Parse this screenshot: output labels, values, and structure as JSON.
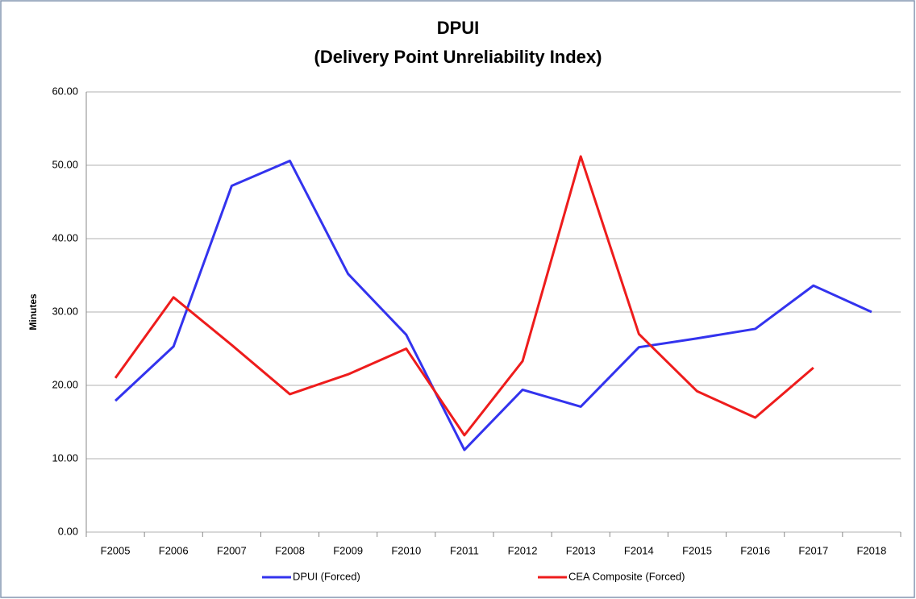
{
  "chart_data": {
    "type": "line",
    "title": "DPUI",
    "subtitle": "(Delivery Point Unreliability Index)",
    "y_label": "Minutes",
    "categories": [
      "F2005",
      "F2006",
      "F2007",
      "F2008",
      "F2009",
      "F2010",
      "F2011",
      "F2012",
      "F2013",
      "F2014",
      "F2015",
      "F2016",
      "F2017",
      "F2018"
    ],
    "series": [
      {
        "name": "DPUI (Forced)",
        "color": "#3333ee",
        "values": [
          17.9,
          25.3,
          47.2,
          50.6,
          35.2,
          26.9,
          11.2,
          19.4,
          17.1,
          25.2,
          26.4,
          27.7,
          33.6,
          30.0
        ]
      },
      {
        "name": "CEA Composite (Forced)",
        "color": "#ee1c1c",
        "values": [
          21.0,
          32.0,
          25.5,
          18.8,
          21.5,
          25.0,
          13.2,
          23.3,
          51.2,
          27.0,
          19.2,
          15.6,
          22.4,
          null
        ]
      }
    ],
    "ylim": [
      0,
      60
    ],
    "yticks": [
      {
        "value": 0,
        "label": "0.00"
      },
      {
        "value": 10,
        "label": "10.00"
      },
      {
        "value": 20,
        "label": "20.00"
      },
      {
        "value": 30,
        "label": "30.00"
      },
      {
        "value": 40,
        "label": "40.00"
      },
      {
        "value": 50,
        "label": "50.00"
      },
      {
        "value": 60,
        "label": "60.00"
      }
    ],
    "grid": true,
    "legend": "bottom"
  }
}
